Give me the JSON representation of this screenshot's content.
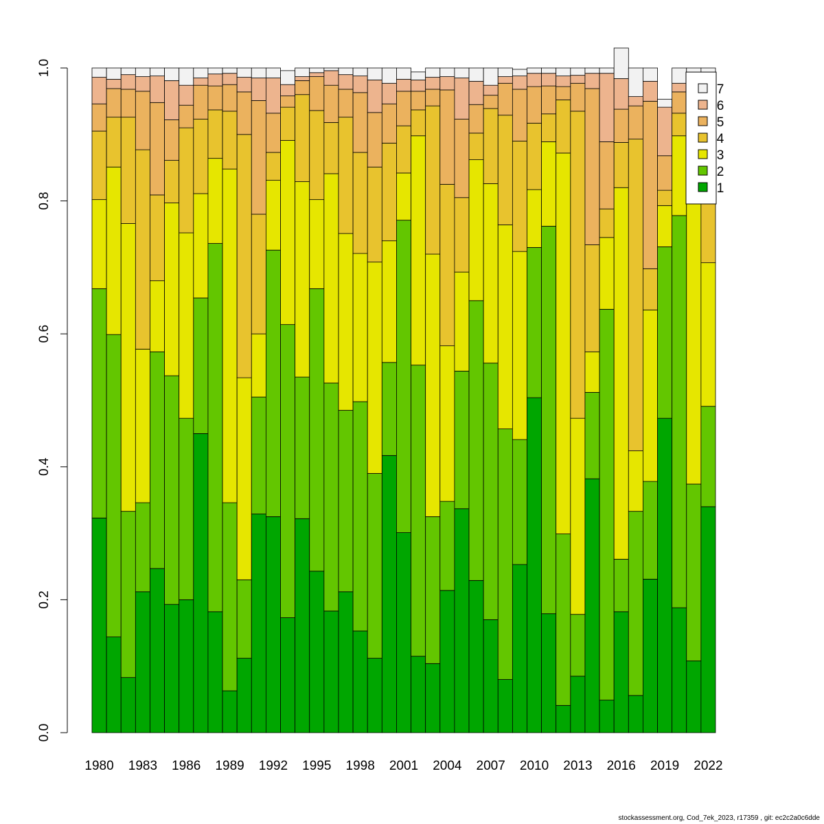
{
  "chart_data": {
    "type": "bar",
    "stacked": true,
    "categories": [
      "1980",
      "1981",
      "1982",
      "1983",
      "1984",
      "1985",
      "1986",
      "1987",
      "1988",
      "1989",
      "1990",
      "1991",
      "1992",
      "1993",
      "1994",
      "1995",
      "1996",
      "1997",
      "1998",
      "1999",
      "2000",
      "2001",
      "2002",
      "2003",
      "2004",
      "2005",
      "2006",
      "2007",
      "2008",
      "2009",
      "2010",
      "2011",
      "2012",
      "2013",
      "2014",
      "2015",
      "2016",
      "2017",
      "2018",
      "2019",
      "2020",
      "2021",
      "2022"
    ],
    "x_tick_labels": [
      "1980",
      "1983",
      "1986",
      "1989",
      "1992",
      "1995",
      "1998",
      "2001",
      "2004",
      "2007",
      "2010",
      "2013",
      "2016",
      "2019",
      "2022"
    ],
    "y_tick_labels": [
      "0.0",
      "0.2",
      "0.4",
      "0.6",
      "0.8",
      "1.0"
    ],
    "ylim": [
      0,
      1
    ],
    "series": [
      {
        "name": "1",
        "color": "#00A600",
        "values": [
          0.323,
          0.144,
          0.083,
          0.212,
          0.247,
          0.193,
          0.2,
          0.45,
          0.182,
          0.063,
          0.112,
          0.329,
          0.325,
          0.173,
          0.322,
          0.243,
          0.183,
          0.212,
          0.153,
          0.112,
          0.417,
          0.301,
          0.115,
          0.104,
          0.214,
          0.337,
          0.229,
          0.17,
          0.08,
          0.253,
          0.504,
          0.179,
          0.041,
          0.085,
          0.382,
          0.049,
          0.182,
          0.056,
          0.231,
          0.473,
          0.188,
          0.108,
          0.34
        ]
      },
      {
        "name": "2",
        "color": "#63C600",
        "values": [
          0.345,
          0.455,
          0.25,
          0.134,
          0.326,
          0.344,
          0.273,
          0.204,
          0.554,
          0.283,
          0.118,
          0.176,
          0.401,
          0.441,
          0.213,
          0.425,
          0.343,
          0.273,
          0.345,
          0.278,
          0.14,
          0.47,
          0.438,
          0.221,
          0.134,
          0.207,
          0.421,
          0.386,
          0.377,
          0.188,
          0.226,
          0.583,
          0.258,
          0.093,
          0.13,
          0.588,
          0.079,
          0.277,
          0.147,
          0.258,
          0.59,
          0.266,
          0.151
        ]
      },
      {
        "name": "3",
        "color": "#E6E600",
        "values": [
          0.134,
          0.252,
          0.433,
          0.231,
          0.107,
          0.26,
          0.279,
          0.157,
          0.128,
          0.502,
          0.304,
          0.095,
          0.105,
          0.277,
          0.294,
          0.134,
          0.315,
          0.266,
          0.223,
          0.318,
          0.183,
          0.071,
          0.345,
          0.395,
          0.234,
          0.149,
          0.212,
          0.27,
          0.307,
          0.283,
          0.087,
          0.127,
          0.573,
          0.295,
          0.061,
          0.108,
          0.559,
          0.091,
          0.258,
          0.062,
          0.12,
          0.423,
          0.216
        ]
      },
      {
        "name": "4",
        "color": "#E8C32E",
        "values": [
          0.103,
          0.075,
          0.16,
          0.3,
          0.129,
          0.064,
          0.158,
          0.112,
          0.073,
          0.087,
          0.366,
          0.18,
          0.042,
          0.05,
          0.131,
          0.134,
          0.077,
          0.175,
          0.152,
          0.143,
          0.147,
          0.071,
          0.039,
          0.223,
          0.243,
          0.112,
          0.04,
          0.113,
          0.165,
          0.166,
          0.1,
          0.042,
          0.08,
          0.462,
          0.161,
          0.043,
          0.068,
          0.469,
          0.062,
          0.023,
          0.034,
          0.093,
          0.136
        ]
      },
      {
        "name": "5",
        "color": "#EBB25E",
        "values": [
          0.041,
          0.043,
          0.042,
          0.088,
          0.139,
          0.061,
          0.034,
          0.051,
          0.036,
          0.04,
          0.064,
          0.171,
          0.059,
          0.017,
          0.021,
          0.051,
          0.056,
          0.042,
          0.09,
          0.082,
          0.059,
          0.052,
          0.028,
          0.025,
          0.142,
          0.118,
          0.043,
          0.02,
          0.048,
          0.078,
          0.055,
          0.042,
          0.02,
          0.042,
          0.235,
          0.101,
          0.05,
          0.05,
          0.252,
          0.052,
          0.032,
          0.036,
          0.047
        ]
      },
      {
        "name": "6",
        "color": "#EDB48E",
        "values": [
          0.04,
          0.014,
          0.022,
          0.022,
          0.04,
          0.059,
          0.03,
          0.011,
          0.018,
          0.017,
          0.022,
          0.034,
          0.053,
          0.017,
          0.006,
          0.006,
          0.022,
          0.022,
          0.025,
          0.049,
          0.031,
          0.018,
          0.017,
          0.018,
          0.02,
          0.062,
          0.035,
          0.015,
          0.01,
          0.02,
          0.02,
          0.019,
          0.016,
          0.012,
          0.023,
          0.103,
          0.046,
          0.014,
          0.03,
          0.073,
          0.013,
          0.039,
          0.04
        ]
      },
      {
        "name": "7",
        "color": "#F2F2F2",
        "values": [
          0.014,
          0.017,
          0.01,
          0.013,
          0.012,
          0.019,
          0.026,
          0.015,
          0.009,
          0.008,
          0.014,
          0.015,
          0.015,
          0.021,
          0.013,
          0.007,
          0.004,
          0.01,
          0.012,
          0.018,
          0.023,
          0.017,
          0.012,
          0.014,
          0.013,
          0.015,
          0.02,
          0.026,
          0.013,
          0.01,
          0.008,
          0.008,
          0.012,
          0.011,
          0.008,
          0.008,
          0.046,
          0.043,
          0.02,
          0.012,
          0.023,
          0.035,
          0.07
        ]
      }
    ],
    "legend_position": "top-right",
    "grid": false
  },
  "footer": "stockassessment.org, Cod_7ek_2023, r17359 , git: ec2c2a0c6dde"
}
